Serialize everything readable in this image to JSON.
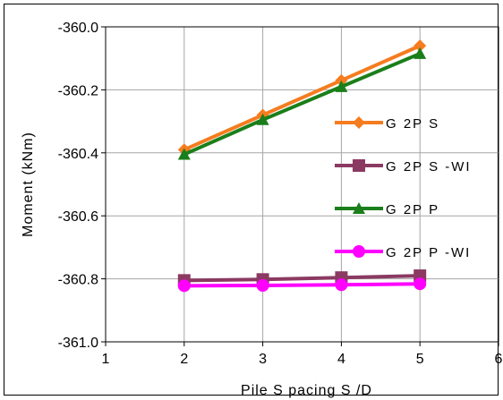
{
  "chart_data": {
    "type": "line",
    "title": "",
    "xlabel": "Pile S pacing S /D",
    "ylabel": "Moment (kNm)",
    "xlim": [
      1,
      6
    ],
    "ylim": [
      -361.0,
      -360.0
    ],
    "x_ticks": [
      "1",
      "2",
      "3",
      "4",
      "5",
      "6"
    ],
    "y_ticks": [
      "-360.0",
      "-360.2",
      "-360.4",
      "-360.6",
      "-360.8",
      "-361.0"
    ],
    "grid": true,
    "legend_placement": "right",
    "x": [
      2,
      3,
      4,
      5
    ],
    "series": [
      {
        "name": "G2PS",
        "label": "G 2P S",
        "color": "#f57c1f",
        "marker": "diamond",
        "values": [
          -360.39,
          -360.28,
          -360.17,
          -360.06
        ]
      },
      {
        "name": "G2PS-WI",
        "label": "G 2P S -WI",
        "color": "#8b3a62",
        "marker": "square",
        "values": [
          -360.805,
          -360.802,
          -360.796,
          -360.79
        ]
      },
      {
        "name": "G2PP",
        "label": "G 2P P",
        "color": "#1a7f1a",
        "marker": "triangle",
        "values": [
          -360.405,
          -360.295,
          -360.19,
          -360.085
        ]
      },
      {
        "name": "G2PP-WI",
        "label": "G 2P P -WI",
        "color": "#ff00ff",
        "marker": "circle",
        "values": [
          -360.822,
          -360.821,
          -360.819,
          -360.816
        ]
      }
    ]
  }
}
